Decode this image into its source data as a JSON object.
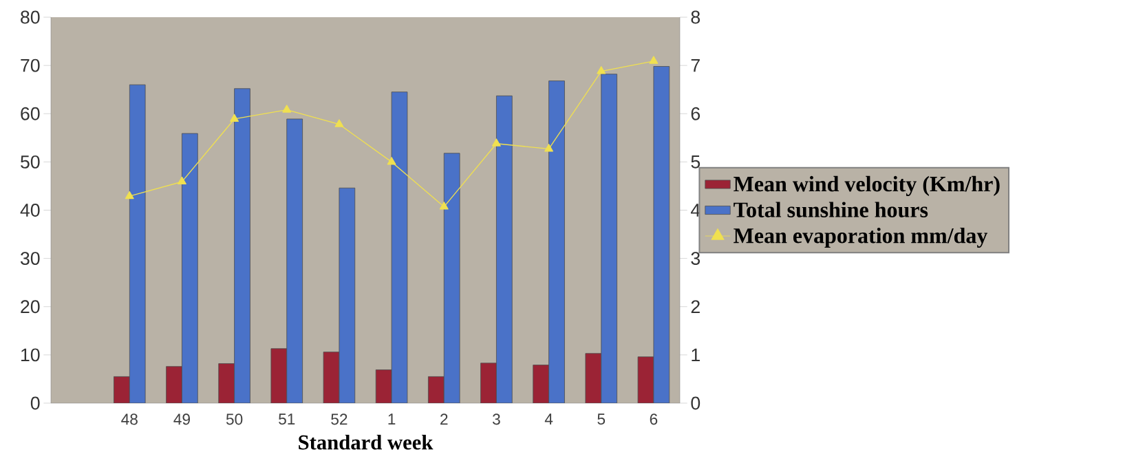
{
  "chart_data": {
    "type": "bar",
    "xlabel": "Standard week",
    "categories": [
      null,
      "48",
      "49",
      "50",
      "51",
      "52",
      "1",
      "2",
      "3",
      "4",
      "5",
      "6"
    ],
    "series": [
      {
        "name": "Mean wind velocity (Km/hr)",
        "color": "#9b2335",
        "values": [
          null,
          5.5,
          7.6,
          8.2,
          11.3,
          10.6,
          6.9,
          5.5,
          8.3,
          7.9,
          10.3,
          9.6
        ]
      },
      {
        "name": "Total sunshine hours",
        "color": "#4a72c8",
        "values": [
          null,
          66.0,
          55.9,
          65.2,
          58.9,
          44.6,
          64.5,
          51.8,
          63.7,
          66.8,
          68.2,
          69.8
        ]
      },
      {
        "name": "Mean evaporation mm/day",
        "type": "line",
        "axis": "y2",
        "color": "#f0e050",
        "marker": "triangle",
        "values": [
          null,
          4.29,
          4.59,
          5.89,
          6.08,
          5.78,
          5.0,
          4.07,
          5.38,
          5.27,
          6.88,
          7.09
        ]
      }
    ],
    "ylim": [
      0,
      80
    ],
    "yticks": [
      0,
      10,
      20,
      30,
      40,
      50,
      60,
      70,
      80
    ],
    "y2lim": [
      0,
      8
    ],
    "y2ticks": [
      0,
      1,
      2,
      3,
      4,
      5,
      6,
      7,
      8
    ],
    "grid": false,
    "legend": "right"
  }
}
